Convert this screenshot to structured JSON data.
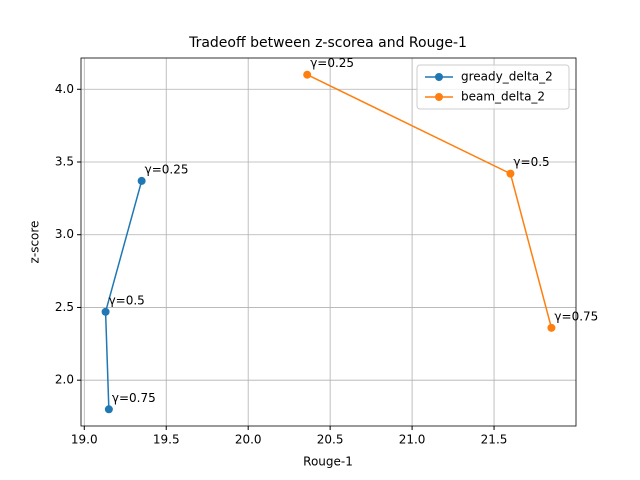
{
  "chart_data": {
    "type": "line",
    "title": "Tradeoff between z-scorea and Rouge-1",
    "x_label": "Rouge-1",
    "y_label": "z-score",
    "xlim": [
      18.98,
      22.0
    ],
    "ylim": [
      1.685,
      4.215
    ],
    "xticks": [
      {
        "value": 19.0,
        "label": "19.0"
      },
      19.5,
      {
        "value": 20.0,
        "label": "20.0"
      },
      20.5,
      {
        "value": 21.0,
        "label": "21.0"
      },
      21.5
    ],
    "yticks": [
      {
        "value": 2.0,
        "label": "2.0"
      },
      2.5,
      {
        "value": 3.0,
        "label": "3.0"
      },
      3.5,
      {
        "value": 4.0,
        "label": "4.0"
      }
    ],
    "grid": true,
    "legend": "upper right",
    "series": [
      {
        "name": "gready_delta_2",
        "color": "#1f77b4",
        "x": [
          19.35,
          19.13,
          19.15
        ],
        "values": [
          3.37,
          2.47,
          1.8
        ],
        "point_labels": [
          "γ=0.25",
          "γ=0.5",
          "γ=0.75"
        ]
      },
      {
        "name": "beam_delta_2",
        "color": "#ff7f0e",
        "x": [
          20.36,
          21.6,
          21.85
        ],
        "values": [
          4.1,
          3.42,
          2.36
        ],
        "point_labels": [
          "γ=0.25",
          "γ=0.5",
          "γ=0.75"
        ]
      }
    ]
  }
}
